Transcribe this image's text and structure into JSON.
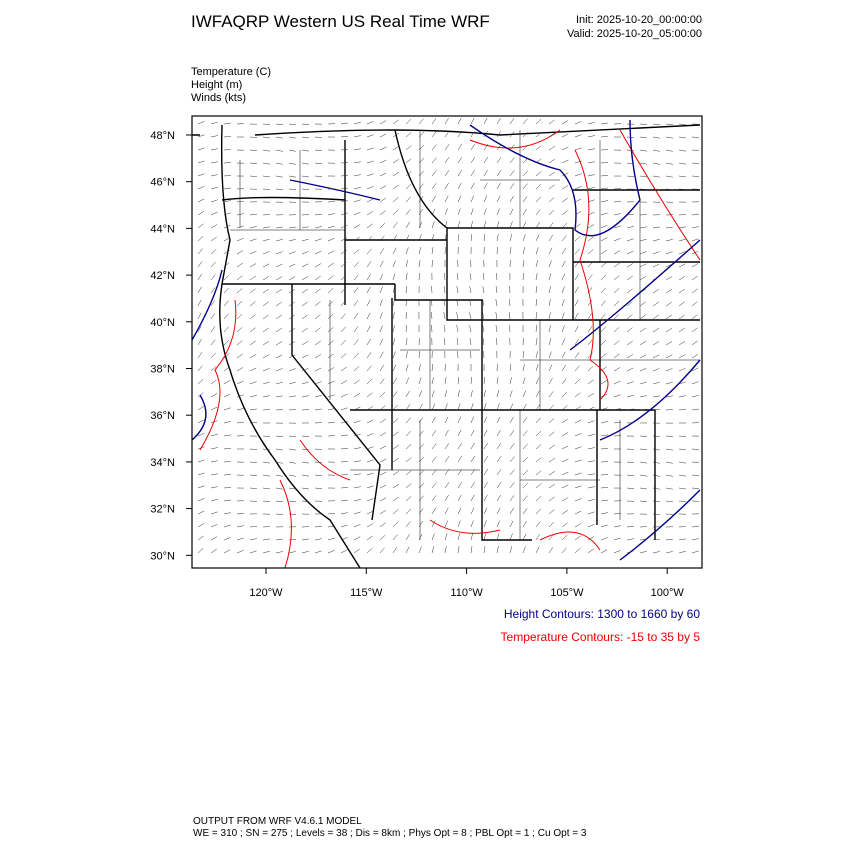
{
  "header": {
    "title": "IWFAQRP Western US Real Time WRF",
    "init": "Init: 2025-10-20_00:00:00",
    "valid": "Valid: 2025-10-20_05:00:00"
  },
  "fields": [
    "Temperature   (C)",
    "Height   (m)",
    "Winds   (kts)"
  ],
  "lat_labels": [
    "48°N",
    "46°N",
    "44°N",
    "42°N",
    "40°N",
    "38°N",
    "36°N",
    "34°N",
    "32°N",
    "30°N"
  ],
  "lon_labels": [
    "120°W",
    "115°W",
    "110°W",
    "105°W",
    "100°W"
  ],
  "legend": {
    "height": "Height Contours: 1300 to 1660 by 60",
    "temperature": "Temperature Contours: -15 to 35 by 5"
  },
  "footer": {
    "line1": "OUTPUT FROM WRF V4.6.1 MODEL",
    "line2": "WE = 310 ; SN = 275 ; Levels = 38 ; Dis = 8km ; Phys Opt = 8 ; PBL Opt = 1 ; Cu Opt = 3"
  }
}
